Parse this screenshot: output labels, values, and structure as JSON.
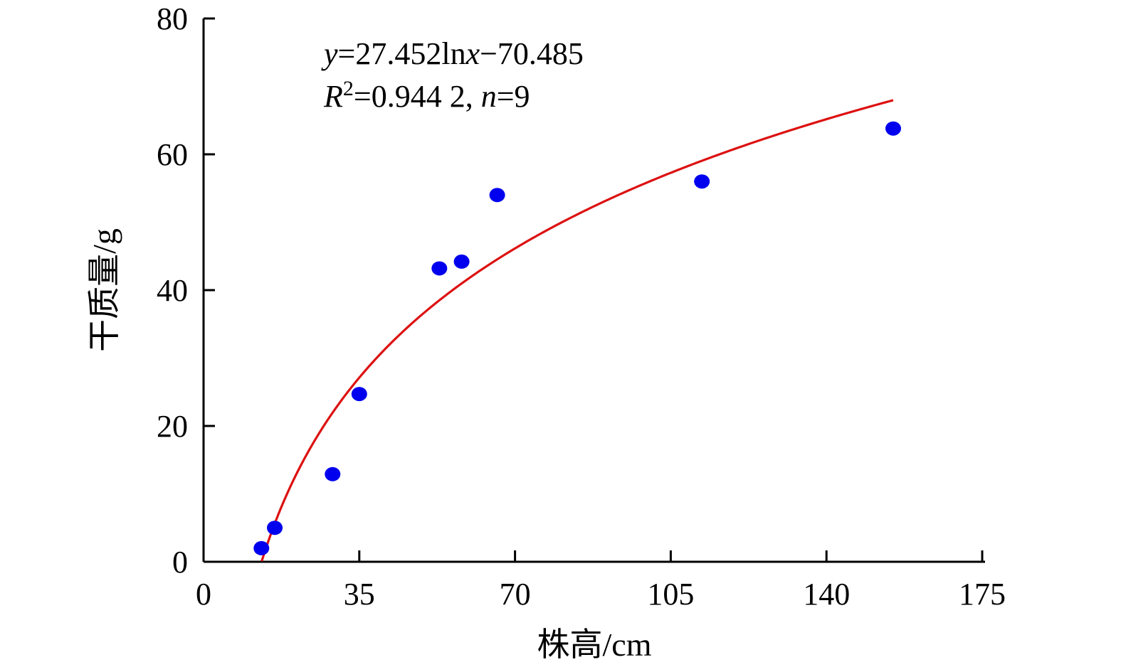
{
  "chart_data": {
    "type": "scatter",
    "xlabel": "株高/cm",
    "ylabel": "干质量/g",
    "xlim": [
      0,
      175
    ],
    "ylim": [
      0,
      80
    ],
    "xticks": [
      "0",
      "35",
      "70",
      "105",
      "140",
      "175"
    ],
    "yticks": [
      "0",
      "20",
      "40",
      "60",
      "80"
    ],
    "grid": false,
    "series": [
      {
        "type": "scatter",
        "color": "#0000ee",
        "points": [
          {
            "x": 13,
            "y": 2.0
          },
          {
            "x": 16,
            "y": 5.0
          },
          {
            "x": 29,
            "y": 12.9
          },
          {
            "x": 35,
            "y": 24.7
          },
          {
            "x": 53,
            "y": 43.2
          },
          {
            "x": 58,
            "y": 44.2
          },
          {
            "x": 66,
            "y": 54.0
          },
          {
            "x": 112,
            "y": 56.0
          },
          {
            "x": 155,
            "y": 63.8
          }
        ]
      },
      {
        "type": "line",
        "color": "#dd1111",
        "fit": {
          "kind": "log",
          "a": 27.452,
          "b": -70.485,
          "x_start": 13.07,
          "x_end": 155
        }
      }
    ],
    "annotation": {
      "equation": {
        "y_var": "y",
        "body_1": "=27.452ln",
        "x_var": "x",
        "body_2": "−70.485"
      },
      "r2": {
        "r_var": "R",
        "sup": "2",
        "body_1": "=0.944 2, ",
        "n_var": "n",
        "body_2": "=9"
      }
    }
  }
}
